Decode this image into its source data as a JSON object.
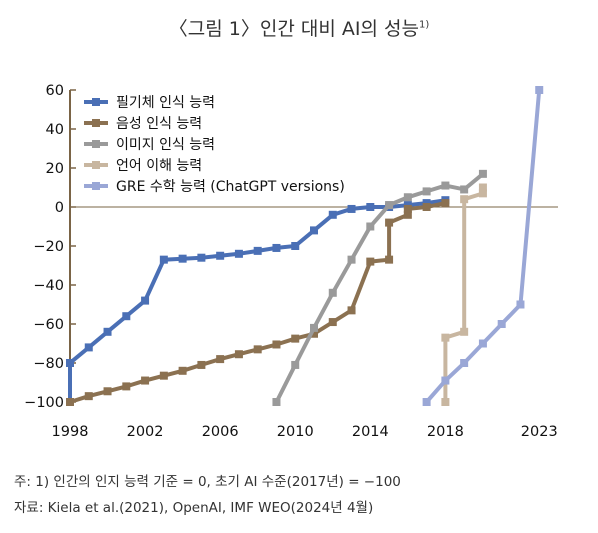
{
  "title": "〈그림 1〉인간 대비 AI의 성능",
  "title_sup": "1)",
  "footnote": "주: 1) 인간의 인지 능력 기준 = 0, 초기 AI 수준(2017년) = −100",
  "source": "자료: Kiela et al.(2021), OpenAI, IMF WEO(2024년 4월)",
  "chart_data": {
    "type": "line",
    "title": "〈그림 1〉인간 대비 AI의 성능",
    "xlabel": "",
    "ylabel": "",
    "xlim": [
      1998,
      2024
    ],
    "ylim": [
      -100,
      60
    ],
    "x_ticks": [
      1998,
      2002,
      2006,
      2010,
      2014,
      2018,
      2023
    ],
    "y_ticks": [
      60,
      40,
      20,
      0,
      -20,
      -40,
      -60,
      -80,
      -100
    ],
    "y_tick_labels": [
      "60",
      "40",
      "20",
      "0",
      "−20",
      "−40",
      "−60",
      "−80",
      "−100"
    ],
    "legend_position": "top-left",
    "series": [
      {
        "name": "필기체 인식 능력",
        "color": "#4a6fb5",
        "points": [
          [
            1998,
            -100
          ],
          [
            1998,
            -80
          ],
          [
            1999,
            -72
          ],
          [
            2000,
            -64
          ],
          [
            2001,
            -56
          ],
          [
            2002,
            -48
          ],
          [
            2003,
            -27
          ],
          [
            2004,
            -26.5
          ],
          [
            2005,
            -26
          ],
          [
            2006,
            -25
          ],
          [
            2007,
            -24
          ],
          [
            2008,
            -22.5
          ],
          [
            2009,
            -21
          ],
          [
            2010,
            -20
          ],
          [
            2011,
            -12
          ],
          [
            2012,
            -4
          ],
          [
            2013,
            -1
          ],
          [
            2014,
            0
          ],
          [
            2015,
            0
          ],
          [
            2016,
            1
          ],
          [
            2017,
            2
          ],
          [
            2018,
            3.5
          ]
        ]
      },
      {
        "name": "음성 인식 능력",
        "color": "#8b7151",
        "points": [
          [
            1998,
            -100
          ],
          [
            1999,
            -97
          ],
          [
            2000,
            -94.5
          ],
          [
            2001,
            -92
          ],
          [
            2002,
            -89
          ],
          [
            2003,
            -86.5
          ],
          [
            2004,
            -84
          ],
          [
            2005,
            -81
          ],
          [
            2006,
            -78
          ],
          [
            2007,
            -75.5
          ],
          [
            2008,
            -73
          ],
          [
            2009,
            -70.5
          ],
          [
            2010,
            -67.5
          ],
          [
            2011,
            -65
          ],
          [
            2012,
            -59
          ],
          [
            2013,
            -53
          ],
          [
            2014,
            -28
          ],
          [
            2015,
            -27
          ],
          [
            2015,
            -8
          ],
          [
            2016,
            -4
          ],
          [
            2016,
            -1
          ],
          [
            2017,
            0
          ],
          [
            2018,
            2
          ]
        ]
      },
      {
        "name": "이미지 인식 능력",
        "color": "#9a9a9a",
        "points": [
          [
            2009,
            -100
          ],
          [
            2010,
            -81
          ],
          [
            2011,
            -62
          ],
          [
            2012,
            -44
          ],
          [
            2013,
            -27
          ],
          [
            2014,
            -10
          ],
          [
            2015,
            1
          ],
          [
            2016,
            5
          ],
          [
            2017,
            8
          ],
          [
            2018,
            11
          ],
          [
            2019,
            9
          ],
          [
            2020,
            17
          ]
        ]
      },
      {
        "name": "언어 이해 능력",
        "color": "#c8b6a0",
        "points": [
          [
            2018,
            -100
          ],
          [
            2018,
            -67
          ],
          [
            2019,
            -64
          ],
          [
            2019,
            4
          ],
          [
            2020,
            7
          ],
          [
            2020,
            10
          ]
        ]
      },
      {
        "name": "GRE 수학 능력 (ChatGPT versions)",
        "color": "#9aa7d6",
        "points": [
          [
            2017,
            -100
          ],
          [
            2018,
            -89
          ],
          [
            2019,
            -80
          ],
          [
            2020,
            -70
          ],
          [
            2021,
            -60
          ],
          [
            2022,
            -50
          ],
          [
            2023,
            60
          ]
        ]
      }
    ]
  }
}
